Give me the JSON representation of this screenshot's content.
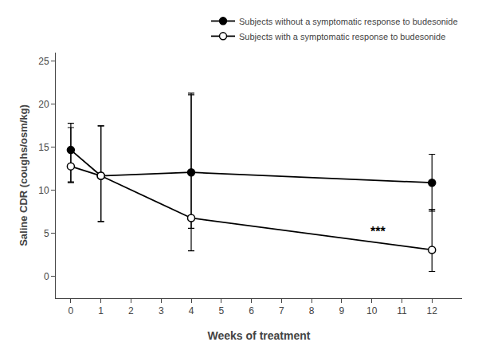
{
  "chart_data": {
    "type": "line",
    "xlabel": "Weeks of treatment",
    "ylabel": "Saline CDR (coughs/osm/kg)",
    "x": [
      0,
      1,
      4,
      12
    ],
    "series": [
      {
        "name": "Subjects without a symptomatic response to budesonide",
        "color": "#000000",
        "marker": "circle",
        "values": [
          14.7,
          11.7,
          12.1,
          10.9
        ],
        "error_upper": [
          3.1,
          5.8,
          9.0,
          3.3
        ],
        "error_lower": [
          3.8,
          5.3,
          6.5,
          3.3
        ]
      },
      {
        "name": "Subjects with a symptomatic response to budesonide",
        "color": "#000000",
        "marker": "circle-open",
        "values": [
          12.8,
          11.7,
          6.8,
          3.1
        ],
        "error_upper": [
          4.5,
          5.8,
          14.5,
          4.7
        ],
        "error_lower": [
          1.8,
          5.3,
          3.8,
          2.5
        ]
      }
    ],
    "xlim": [
      -0.5,
      13
    ],
    "xticks": [
      0,
      1,
      2,
      3,
      4,
      5,
      6,
      7,
      8,
      9,
      10,
      11,
      12
    ],
    "ylim": [
      -2.5,
      26
    ],
    "yticks": [
      0,
      5,
      10,
      15,
      20,
      25
    ],
    "annotations": [
      {
        "text": "***",
        "x": 10.2,
        "y": 5.2
      }
    ],
    "grid": false,
    "legend": "upper right"
  }
}
